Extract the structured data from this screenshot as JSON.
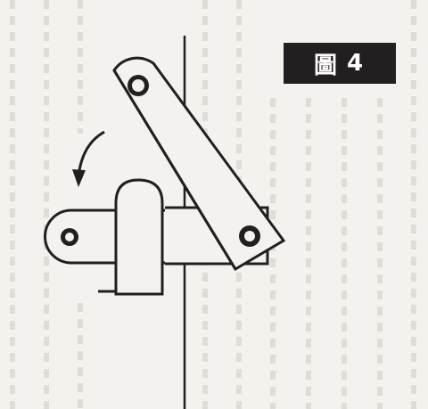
{
  "figure": {
    "label": "圖 4",
    "label_char": "圖",
    "label_number": "4"
  },
  "colors": {
    "ink": "#231f20",
    "paper": "#f4f2ee",
    "background_text": "#c9c4bd",
    "label_bg": "#231f20",
    "label_fg": "#ffffff"
  },
  "icons": {
    "rotation_arrow": "curved-counterclockwise-arrow"
  }
}
